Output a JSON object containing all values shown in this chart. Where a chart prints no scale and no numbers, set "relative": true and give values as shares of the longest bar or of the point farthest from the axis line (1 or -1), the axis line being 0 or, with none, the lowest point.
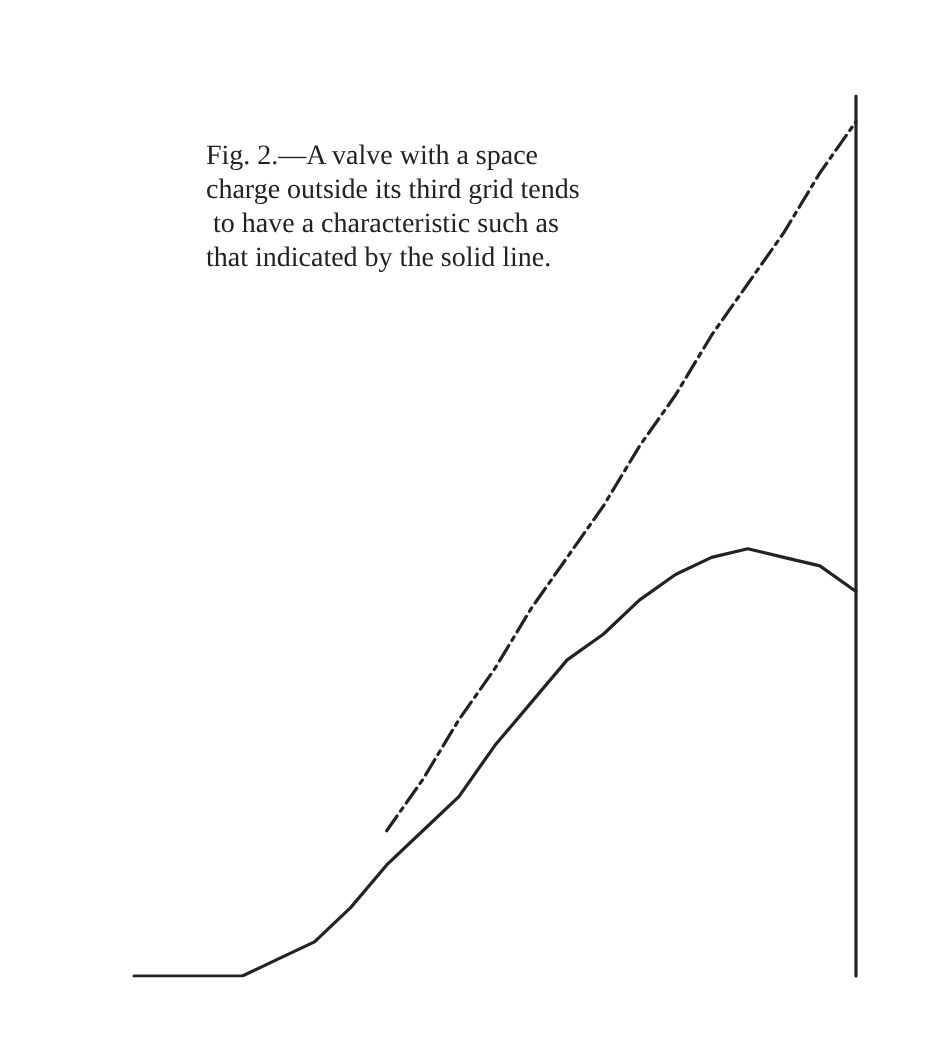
{
  "chart_data": {
    "type": "line",
    "relative": true,
    "grid": false,
    "marker": "none",
    "annotations": [
      "Fig. 2.—A valve with a space charge outside its third grid tends to have a characteristic such as that indicated by the solid line."
    ],
    "categories": [
      null,
      null,
      null,
      null,
      null,
      null,
      null,
      null,
      null,
      null,
      null,
      null,
      null,
      null,
      null,
      null,
      null,
      null,
      null,
      null,
      null
    ],
    "series": [
      {
        "color": "#222222",
        "line_style": "solid",
        "values": [
          0,
          0,
          0,
          0,
          0.02,
          0.04,
          0.08,
          0.13,
          0.17,
          0.21,
          0.27,
          0.32,
          0.37,
          0.4,
          0.44,
          0.47,
          0.49,
          0.5,
          0.49,
          0.48,
          0.45
        ]
      },
      {
        "color": "#222222",
        "line_style": "dashed",
        "values": [
          null,
          null,
          null,
          null,
          null,
          null,
          null,
          0.17,
          0.23,
          0.3,
          0.36,
          0.43,
          0.49,
          0.55,
          0.62,
          0.68,
          0.75,
          0.81,
          0.87,
          0.94,
          1
        ]
      }
    ]
  }
}
